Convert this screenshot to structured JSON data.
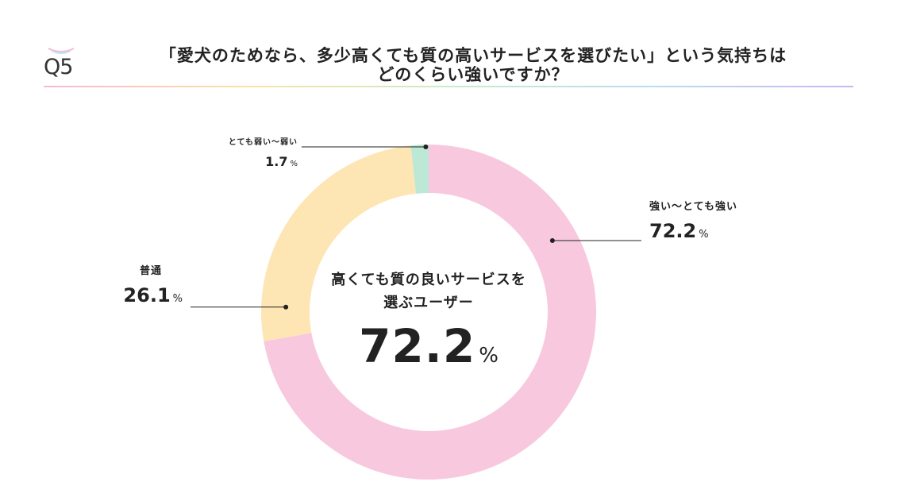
{
  "question": {
    "number": "Q5",
    "line1": "「愛犬のためなら、多少高くても質の高いサービスを選びたい」という気持ちは",
    "line2": "どのくらい強いですか？"
  },
  "center": {
    "caption_line1": "高くても質の良いサービスを",
    "caption_line2": "選ぶユーザー",
    "value": "72.2",
    "unit": "%"
  },
  "chart_data": {
    "type": "pie",
    "donut": true,
    "slices": [
      {
        "label": "強い～とても強い",
        "value": 72.2,
        "value_text": "72.2",
        "color": "#f8c8df"
      },
      {
        "label": "普通",
        "value": 26.1,
        "value_text": "26.1",
        "color": "#fde5b4"
      },
      {
        "label": "とても弱い～弱い",
        "value": 1.7,
        "value_text": "1.7",
        "color": "#bde8d6"
      }
    ],
    "unit": "%",
    "leader_color": "#222222"
  }
}
